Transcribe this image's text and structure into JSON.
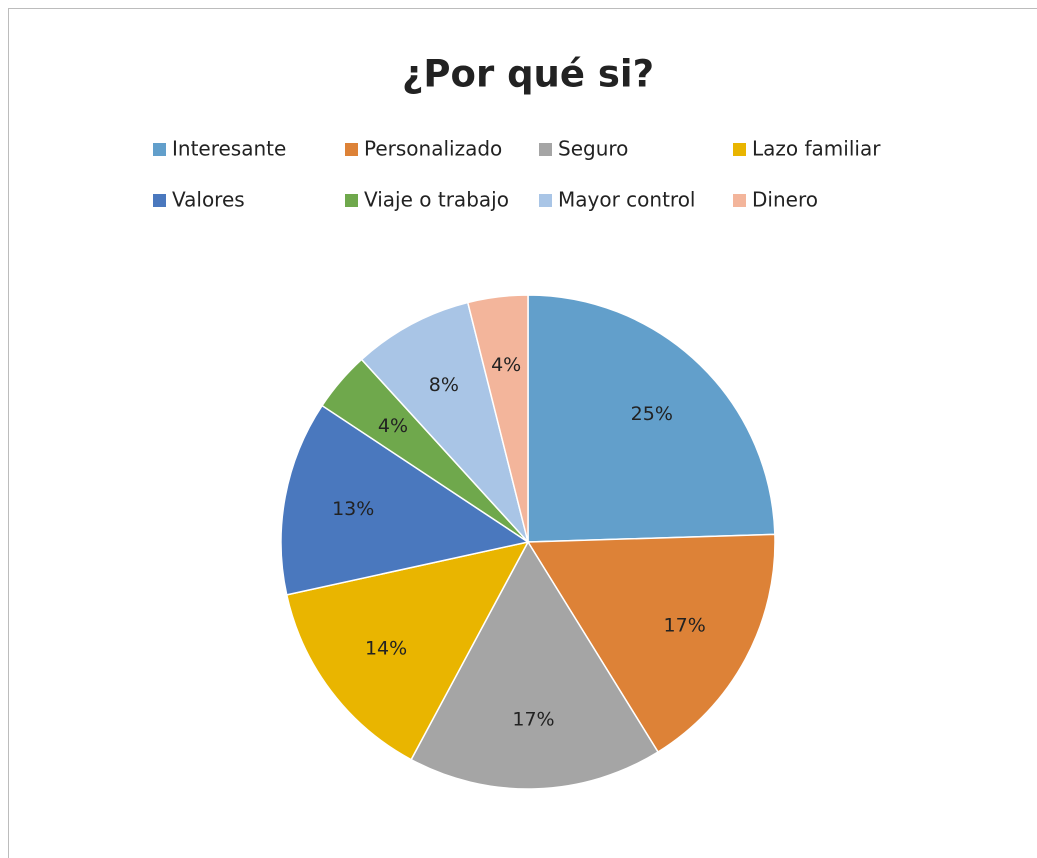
{
  "chart_data": {
    "type": "pie",
    "title": "¿Por qué si?",
    "categories": [
      "Interesante",
      "Personalizado",
      "Seguro",
      "Lazo familiar",
      "Valores",
      "Viaje o trabajo",
      "Mayor control",
      "Dinero"
    ],
    "values": [
      25,
      17,
      17,
      14,
      13,
      4,
      8,
      4
    ],
    "value_labels": [
      "25%",
      "17%",
      "17%",
      "14%",
      "13%",
      "4%",
      "8%",
      "4%"
    ],
    "colors": [
      "#629fcb",
      "#dd8237",
      "#a5a5a5",
      "#e9b500",
      "#4a78be",
      "#6fa84c",
      "#a9c5e6",
      "#f3b59b"
    ],
    "legend": "top"
  }
}
